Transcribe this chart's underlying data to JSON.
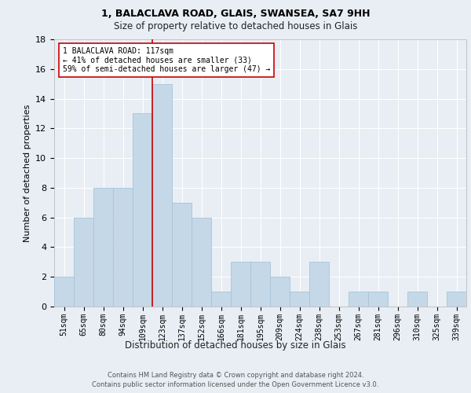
{
  "title1": "1, BALACLAVA ROAD, GLAIS, SWANSEA, SA7 9HH",
  "title2": "Size of property relative to detached houses in Glais",
  "xlabel": "Distribution of detached houses by size in Glais",
  "ylabel": "Number of detached properties",
  "categories": [
    "51sqm",
    "65sqm",
    "80sqm",
    "94sqm",
    "109sqm",
    "123sqm",
    "137sqm",
    "152sqm",
    "166sqm",
    "181sqm",
    "195sqm",
    "209sqm",
    "224sqm",
    "238sqm",
    "253sqm",
    "267sqm",
    "281sqm",
    "296sqm",
    "310sqm",
    "325sqm",
    "339sqm"
  ],
  "values": [
    2,
    6,
    8,
    8,
    13,
    15,
    7,
    6,
    1,
    3,
    3,
    2,
    1,
    3,
    0,
    1,
    1,
    0,
    1,
    0,
    1
  ],
  "bar_color": "#c5d8e8",
  "bar_edge_color": "#a8c4d8",
  "vline_x_idx": 4.5,
  "vline_color": "#cc0000",
  "annotation_text": "1 BALACLAVA ROAD: 117sqm\n← 41% of detached houses are smaller (33)\n59% of semi-detached houses are larger (47) →",
  "annotation_box_facecolor": "#ffffff",
  "annotation_box_edgecolor": "#cc0000",
  "ylim": [
    0,
    18
  ],
  "yticks": [
    0,
    2,
    4,
    6,
    8,
    10,
    12,
    14,
    16,
    18
  ],
  "footer": "Contains HM Land Registry data © Crown copyright and database right 2024.\nContains public sector information licensed under the Open Government Licence v3.0.",
  "background_color": "#e8eef4",
  "plot_bg_color": "#e8eef4",
  "title1_fontsize": 9,
  "title2_fontsize": 8.5,
  "ylabel_fontsize": 8,
  "xlabel_fontsize": 8.5,
  "tick_fontsize": 7,
  "annotation_fontsize": 7,
  "footer_fontsize": 6
}
